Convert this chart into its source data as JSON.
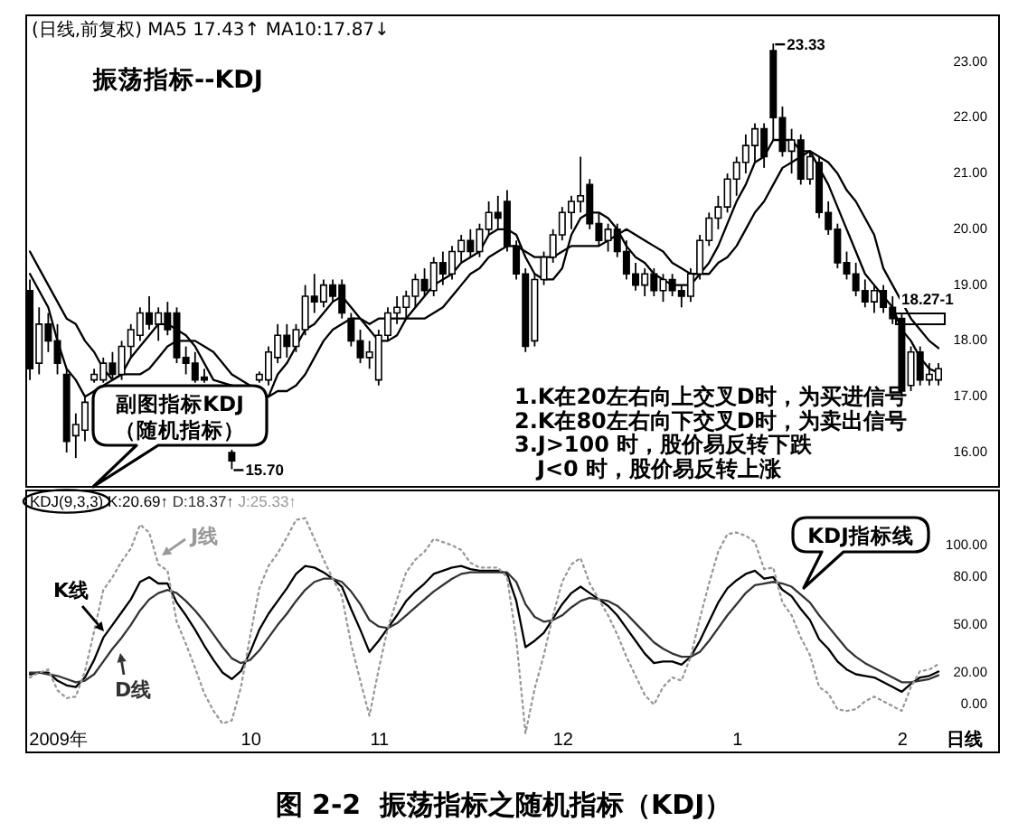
{
  "chart_data": [
    {
      "type": "candlestick",
      "title": "(日线,前复权) MA5 17.43↑ MA10:17.87↓",
      "categories": [
        null,
        null,
        null,
        null,
        null,
        null,
        null,
        null,
        null,
        null,
        null,
        null,
        null,
        null,
        null,
        null,
        null,
        null,
        null,
        null,
        null,
        null,
        null,
        null,
        null,
        null,
        null,
        null,
        null,
        null,
        null,
        null,
        null,
        null,
        null,
        null,
        null,
        null,
        null,
        null,
        null,
        null,
        null,
        null,
        null,
        null,
        null,
        null,
        null,
        null,
        null,
        null,
        null,
        null,
        null,
        null,
        null,
        null,
        null,
        null,
        null,
        null,
        null,
        null,
        null,
        null,
        null,
        null,
        null,
        null,
        null,
        null,
        null,
        null,
        null,
        null,
        null,
        null,
        null,
        null,
        null,
        null,
        null,
        null,
        null,
        null,
        null,
        null,
        null,
        null,
        null,
        null,
        null,
        null,
        null,
        null,
        null,
        null,
        null,
        null,
        null,
        null,
        null,
        null,
        null,
        null
      ],
      "ohlc": [
        [
          18.9,
          19.1,
          17.3,
          17.5
        ],
        [
          17.6,
          18.6,
          17.4,
          18.3
        ],
        [
          18.3,
          18.5,
          17.8,
          18.0
        ],
        [
          18.0,
          18.3,
          17.4,
          17.6
        ],
        [
          17.4,
          17.5,
          16.0,
          16.2
        ],
        [
          16.3,
          16.7,
          15.9,
          16.5
        ],
        [
          16.4,
          17.0,
          16.2,
          16.9
        ],
        [
          17.3,
          17.5,
          17.25,
          17.4
        ],
        [
          17.3,
          17.7,
          17.25,
          17.6
        ],
        [
          17.6,
          17.8,
          17.3,
          17.4
        ],
        [
          17.4,
          18.0,
          17.3,
          17.9
        ],
        [
          17.9,
          18.3,
          17.7,
          18.2
        ],
        [
          18.1,
          18.6,
          18.0,
          18.5
        ],
        [
          18.5,
          18.8,
          18.2,
          18.3
        ],
        [
          18.3,
          18.6,
          18.0,
          18.5
        ],
        [
          18.5,
          18.7,
          18.1,
          18.2
        ],
        [
          18.5,
          18.6,
          17.6,
          17.7
        ],
        [
          17.7,
          17.9,
          17.4,
          17.6
        ],
        [
          17.6,
          17.8,
          17.25,
          17.3
        ],
        [
          17.35,
          17.5,
          17.25,
          17.3
        ],
        null,
        null,
        [
          16.0,
          16.05,
          15.7,
          15.85
        ],
        null,
        null,
        [
          17.3,
          17.45,
          17.25,
          17.4
        ],
        [
          17.3,
          17.9,
          17.2,
          17.8
        ],
        [
          17.7,
          18.3,
          17.6,
          18.1
        ],
        [
          18.1,
          18.3,
          17.7,
          17.9
        ],
        [
          17.9,
          18.3,
          17.8,
          18.2
        ],
        [
          18.2,
          19.0,
          18.1,
          18.8
        ],
        [
          18.8,
          19.2,
          18.5,
          18.7
        ],
        [
          18.7,
          19.1,
          18.6,
          19.0
        ],
        [
          19.0,
          19.1,
          18.7,
          18.8
        ],
        [
          19.0,
          19.1,
          18.4,
          18.5
        ],
        [
          18.4,
          18.5,
          17.9,
          18.0
        ],
        [
          18.0,
          18.2,
          17.6,
          17.7
        ],
        [
          17.7,
          18.0,
          17.5,
          17.8
        ],
        [
          17.3,
          18.2,
          17.2,
          18.1
        ],
        [
          18.1,
          18.6,
          18.0,
          18.5
        ],
        [
          18.5,
          18.8,
          18.3,
          18.6
        ],
        [
          18.6,
          18.9,
          18.4,
          18.8
        ],
        [
          18.8,
          19.2,
          18.6,
          19.1
        ],
        [
          19.1,
          19.3,
          18.8,
          18.9
        ],
        [
          18.9,
          19.5,
          18.8,
          19.4
        ],
        [
          19.4,
          19.6,
          19.0,
          19.2
        ],
        [
          19.2,
          19.7,
          19.1,
          19.6
        ],
        [
          19.6,
          19.9,
          19.4,
          19.8
        ],
        [
          19.8,
          20.0,
          19.5,
          19.6
        ],
        [
          19.6,
          20.1,
          19.5,
          20.0
        ],
        [
          20.0,
          20.5,
          19.9,
          20.3
        ],
        [
          20.3,
          20.6,
          20.0,
          20.2
        ],
        [
          20.5,
          20.7,
          19.6,
          19.7
        ],
        [
          19.7,
          19.8,
          19.1,
          19.2
        ],
        [
          19.2,
          19.3,
          17.8,
          17.9
        ],
        [
          18.0,
          19.2,
          17.9,
          19.1
        ],
        [
          19.1,
          19.6,
          19.0,
          19.5
        ],
        [
          19.5,
          20.0,
          19.4,
          19.9
        ],
        [
          19.9,
          20.4,
          19.8,
          20.3
        ],
        [
          20.3,
          20.6,
          20.0,
          20.5
        ],
        [
          20.5,
          21.3,
          20.3,
          20.6
        ],
        [
          20.8,
          20.9,
          20.0,
          20.1
        ],
        [
          20.1,
          20.3,
          19.7,
          19.8
        ],
        [
          19.8,
          20.1,
          19.6,
          20.0
        ],
        [
          20.0,
          20.1,
          19.5,
          19.6
        ],
        [
          19.6,
          19.8,
          19.1,
          19.2
        ],
        [
          19.2,
          19.4,
          18.9,
          19.0
        ],
        [
          19.0,
          19.3,
          18.8,
          19.2
        ],
        [
          19.2,
          19.3,
          18.8,
          18.9
        ],
        [
          18.9,
          19.2,
          18.7,
          19.1
        ],
        [
          19.1,
          19.2,
          18.8,
          18.9
        ],
        [
          18.9,
          19.0,
          18.6,
          18.8
        ],
        [
          18.8,
          19.3,
          18.7,
          19.2
        ],
        [
          19.2,
          19.9,
          19.1,
          19.8
        ],
        [
          19.8,
          20.3,
          19.7,
          20.2
        ],
        [
          20.2,
          20.6,
          20.0,
          20.4
        ],
        [
          20.4,
          21.0,
          20.3,
          20.9
        ],
        [
          20.9,
          21.3,
          20.6,
          21.2
        ],
        [
          21.2,
          21.7,
          21.0,
          21.5
        ],
        [
          21.5,
          21.9,
          21.2,
          21.8
        ],
        [
          21.8,
          21.9,
          21.1,
          21.3
        ],
        [
          23.2,
          23.33,
          21.6,
          22.0
        ],
        [
          22.0,
          22.2,
          21.3,
          21.4
        ],
        [
          21.4,
          21.8,
          21.0,
          21.6
        ],
        [
          21.6,
          21.7,
          20.8,
          20.9
        ],
        [
          20.9,
          21.4,
          20.8,
          21.3
        ],
        [
          21.2,
          21.3,
          20.2,
          20.3
        ],
        [
          20.3,
          20.5,
          19.9,
          20.0
        ],
        [
          20.0,
          20.1,
          19.3,
          19.4
        ],
        [
          19.4,
          19.6,
          19.1,
          19.2
        ],
        [
          19.2,
          19.4,
          18.8,
          18.9
        ],
        [
          18.9,
          19.1,
          18.6,
          18.7
        ],
        [
          18.7,
          19.0,
          18.5,
          18.9
        ],
        [
          18.9,
          19.0,
          18.5,
          18.6
        ],
        [
          18.6,
          18.8,
          18.3,
          18.4
        ],
        [
          18.4,
          18.5,
          17.0,
          17.1
        ],
        [
          17.2,
          17.9,
          17.1,
          17.8
        ],
        [
          17.8,
          17.9,
          17.2,
          17.3
        ],
        [
          17.3,
          17.6,
          17.2,
          17.4
        ],
        [
          17.3,
          17.6,
          17.2,
          17.5
        ],
        null,
        null,
        null,
        null,
        null,
        null
      ],
      "color": "#000000",
      "series": [
        {
          "type": "line",
          "color": "#000000",
          "values": [
            19.2,
            18.9,
            18.6,
            18.0,
            17.5,
            17.3,
            17.0,
            null,
            null,
            null,
            17.4,
            17.7,
            17.9,
            18.1,
            18.3,
            18.3,
            18.2,
            18.1,
            17.9,
            17.6,
            17.3,
            null,
            null,
            null,
            null,
            null,
            17.0,
            17.4,
            17.6,
            17.9,
            18.2,
            18.3,
            18.5,
            18.7,
            18.8,
            18.6,
            18.4,
            18.2,
            18.0,
            18.0,
            18.1,
            18.4,
            18.6,
            18.8,
            19.0,
            19.1,
            19.2,
            19.4,
            19.5,
            19.6,
            19.9,
            20.0,
            20.0,
            19.9,
            19.5,
            19.2,
            19.1,
            19.1,
            19.3,
            19.9,
            20.2,
            20.3,
            20.3,
            20.2,
            20.0,
            19.7,
            19.5,
            19.4,
            19.2,
            19.1,
            19.0,
            19.0,
            19.0,
            19.2,
            19.4,
            19.7,
            20.1,
            20.5,
            20.8,
            21.2,
            21.3,
            21.6,
            21.6,
            21.6,
            21.4,
            21.4,
            21.1,
            20.8,
            20.4,
            20.0,
            19.6,
            19.2,
            19.0,
            18.8,
            18.6,
            18.2,
            18.0,
            17.7,
            17.5,
            17.43,
            null,
            null,
            null,
            null,
            null,
            null
          ]
        },
        {
          "type": "line",
          "color": "#000000",
          "values": [
            19.6,
            19.3,
            19.0,
            18.7,
            18.4,
            18.3,
            18.0,
            17.8,
            17.5,
            17.3,
            17.4,
            17.4,
            17.4,
            17.5,
            17.7,
            17.9,
            18.0,
            18.0,
            18.0,
            17.9,
            17.8,
            17.6,
            17.4,
            null,
            null,
            null,
            17.0,
            17.1,
            17.1,
            17.2,
            17.4,
            17.7,
            18.0,
            18.2,
            18.3,
            18.4,
            18.4,
            18.3,
            18.4,
            18.4,
            18.4,
            18.4,
            18.4,
            18.4,
            18.5,
            18.6,
            18.8,
            19.0,
            19.2,
            19.3,
            19.5,
            19.6,
            19.7,
            19.7,
            19.6,
            19.5,
            19.5,
            19.5,
            19.6,
            19.7,
            19.7,
            19.7,
            19.7,
            19.8,
            19.9,
            20.0,
            19.9,
            19.8,
            19.7,
            19.6,
            19.4,
            19.3,
            19.2,
            19.2,
            19.2,
            19.4,
            19.5,
            19.7,
            20.0,
            20.3,
            20.5,
            20.8,
            21.1,
            21.2,
            21.3,
            21.4,
            21.3,
            21.2,
            21.0,
            20.7,
            20.5,
            20.2,
            19.9,
            19.3,
            19.0,
            18.7,
            18.4,
            18.2,
            18.0,
            17.87,
            null,
            null,
            null,
            null,
            null,
            null
          ]
        }
      ],
      "ylim": [
        15.4,
        23.85
      ],
      "yticks": [
        {
          "value": 16,
          "label": "16.00"
        },
        {
          "value": 17,
          "label": "17.00"
        },
        {
          "value": 18,
          "label": "18.00"
        },
        {
          "value": 19,
          "label": "19.00"
        },
        {
          "value": 20,
          "label": "20.00"
        },
        {
          "value": 21,
          "label": "21.00"
        },
        {
          "value": 22,
          "label": "22.00"
        },
        {
          "value": 23,
          "label": "23.00"
        }
      ],
      "tick_labels": "y",
      "annotations": [
        "振荡指标--KDJ",
        "副图指标KDJ\n（随机指标）",
        "1.K在20左右向上交叉D时，为买进信号\n2.K在80左右向下交叉D时，为卖出信号\n3.J>100 时，股价易反转下跌\n   J<0 时，股价易反转上涨",
        "23.33",
        "15.70",
        "18.27-1"
      ]
    },
    {
      "type": "line",
      "title": "KDJ(9,3,3) K:20.69↑ D:18.37↑ J:25.33↑",
      "categories": [
        null,
        null,
        null,
        "2009年",
        null,
        null,
        null,
        null,
        null,
        null,
        null,
        null,
        null,
        null,
        null,
        null,
        null,
        null,
        null,
        null,
        null,
        null,
        null,
        null,
        "10",
        null,
        null,
        null,
        null,
        null,
        null,
        null,
        null,
        null,
        null,
        null,
        null,
        null,
        "11",
        null,
        null,
        null,
        null,
        null,
        null,
        null,
        null,
        null,
        null,
        null,
        null,
        null,
        null,
        null,
        null,
        null,
        null,
        null,
        "12",
        null,
        null,
        null,
        null,
        null,
        null,
        null,
        null,
        null,
        null,
        null,
        null,
        null,
        null,
        null,
        null,
        null,
        null,
        "1",
        null,
        null,
        null,
        null,
        null,
        null,
        null,
        null,
        null,
        null,
        null,
        null,
        null,
        null,
        null,
        null,
        null,
        "2",
        null,
        null,
        null,
        null,
        null,
        null,
        null,
        null,
        null,
        null
      ],
      "series": [
        {
          "name": "K线",
          "color": "#000000",
          "values": [
            19,
            20,
            20,
            15,
            12,
            11,
            17,
            28,
            42,
            50,
            58,
            66,
            77,
            80,
            76,
            76,
            64,
            56,
            47,
            37,
            28,
            20,
            16,
            21,
            33,
            47,
            57,
            65,
            73,
            82,
            87,
            86,
            83,
            79,
            74,
            60,
            47,
            33,
            40,
            48,
            56,
            65,
            71,
            76,
            82,
            84,
            86,
            87,
            85,
            84,
            84,
            84,
            82,
            65,
            36,
            40,
            45,
            54,
            63,
            70,
            74,
            70,
            66,
            62,
            56,
            48,
            40,
            32,
            26,
            27,
            27,
            25,
            30,
            40,
            52,
            64,
            73,
            78,
            82,
            84,
            79,
            80,
            72,
            68,
            60,
            53,
            41,
            35,
            27,
            22,
            19,
            18,
            17,
            14,
            11,
            8,
            13,
            17,
            18,
            20.69,
            null,
            null,
            null,
            null,
            null,
            null
          ]
        },
        {
          "name": "D线",
          "color": "#333333",
          "values": [
            20,
            20,
            19,
            18,
            16,
            14,
            15,
            19,
            27,
            35,
            42,
            50,
            59,
            66,
            70,
            72,
            70,
            65,
            59,
            52,
            44,
            36,
            29,
            26,
            28,
            34,
            42,
            50,
            57,
            65,
            72,
            77,
            79,
            79,
            77,
            71,
            63,
            53,
            49,
            48,
            51,
            56,
            61,
            66,
            71,
            75,
            79,
            82,
            83,
            83,
            83,
            83,
            83,
            77,
            63,
            55,
            52,
            53,
            56,
            61,
            65,
            67,
            66,
            65,
            62,
            57,
            51,
            45,
            39,
            35,
            32,
            30,
            30,
            33,
            40,
            48,
            56,
            63,
            70,
            75,
            76,
            77,
            76,
            74,
            69,
            64,
            56,
            49,
            42,
            35,
            30,
            26,
            23,
            20,
            17,
            14,
            14,
            15,
            16,
            18.37,
            null,
            null,
            null,
            null,
            null,
            null
          ]
        },
        {
          "name": "J线",
          "color": "#999999",
          "line_style": "dotted",
          "values": [
            17,
            20,
            22,
            9,
            4,
            5,
            21,
            46,
            72,
            80,
            90,
            98,
            113,
            108,
            88,
            84,
            52,
            38,
            23,
            7,
            -4,
            -12,
            -10,
            11,
            43,
            73,
            87,
            95,
            105,
            116,
            117,
            104,
            91,
            79,
            68,
            38,
            15,
            -7,
            22,
            48,
            66,
            83,
            91,
            96,
            104,
            102,
            100,
            97,
            89,
            86,
            86,
            86,
            80,
            41,
            -18,
            10,
            31,
            56,
            77,
            88,
            92,
            76,
            66,
            56,
            44,
            30,
            18,
            6,
            0,
            11,
            17,
            15,
            30,
            54,
            76,
            96,
            107,
            108,
            106,
            102,
            85,
            86,
            64,
            56,
            42,
            31,
            11,
            7,
            -3,
            -4,
            -3,
            2,
            5,
            2,
            -1,
            -4,
            11,
            21,
            22,
            25.33,
            null,
            null,
            null,
            null,
            null,
            null
          ]
        }
      ],
      "xlabel": "日线",
      "ylim": [
        -29.5,
        135
      ],
      "yticks": [
        {
          "value": 0,
          "label": "0.00"
        },
        {
          "value": 20,
          "label": "20.00"
        },
        {
          "value": 50,
          "label": "50.00"
        },
        {
          "value": 80,
          "label": "80.00"
        },
        {
          "value": 100,
          "label": "100.00"
        }
      ],
      "annotations": [
        "KDJ指标线",
        "图 2-2  振荡指标之随机指标（KDJ）"
      ]
    }
  ]
}
